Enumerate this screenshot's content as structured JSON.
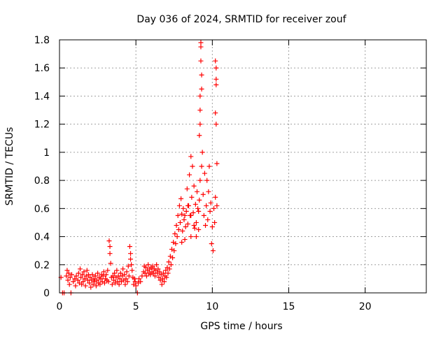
{
  "chart_data": {
    "type": "scatter",
    "title": "Day 036 of 2024, SRMTID for receiver zouf",
    "xlabel": "GPS time / hours",
    "ylabel": "SRMTID / TECUs",
    "xlim": [
      0,
      24
    ],
    "ylim": [
      0,
      1.8
    ],
    "xticks": [
      0,
      5,
      10,
      15,
      20
    ],
    "xtick_labels": [
      "0",
      "5",
      "10",
      "15",
      "20"
    ],
    "yticks": [
      0,
      0.2,
      0.4,
      0.6,
      0.8,
      1.0,
      1.2,
      1.4,
      1.6,
      1.8
    ],
    "ytick_labels": [
      "0",
      "0.2",
      "0.4",
      "0.6",
      "0.8",
      "1",
      "1.2",
      "1.4",
      "1.6",
      "1.8"
    ],
    "grid": true,
    "marker": "+",
    "color": "#ff0000",
    "series": [
      {
        "name": "SRMTID",
        "points": [
          [
            0.1,
            0.11
          ],
          [
            0.2,
            0.0
          ],
          [
            0.3,
            0.0
          ],
          [
            0.45,
            0.12
          ],
          [
            0.5,
            0.16
          ],
          [
            0.55,
            0.09
          ],
          [
            0.6,
            0.14
          ],
          [
            0.65,
            0.06
          ],
          [
            0.7,
            0.11
          ],
          [
            0.75,
            0.0
          ],
          [
            0.8,
            0.13
          ],
          [
            0.9,
            0.08
          ],
          [
            1.0,
            0.1
          ],
          [
            1.05,
            0.05
          ],
          [
            1.1,
            0.12
          ],
          [
            1.2,
            0.09
          ],
          [
            1.25,
            0.14
          ],
          [
            1.3,
            0.07
          ],
          [
            1.35,
            0.17
          ],
          [
            1.4,
            0.11
          ],
          [
            1.45,
            0.06
          ],
          [
            1.5,
            0.13
          ],
          [
            1.55,
            0.08
          ],
          [
            1.6,
            0.15
          ],
          [
            1.65,
            0.1
          ],
          [
            1.7,
            0.05
          ],
          [
            1.75,
            0.12
          ],
          [
            1.8,
            0.16
          ],
          [
            1.85,
            0.09
          ],
          [
            1.9,
            0.13
          ],
          [
            1.95,
            0.07
          ],
          [
            2.0,
            0.11
          ],
          [
            2.05,
            0.04
          ],
          [
            2.1,
            0.09
          ],
          [
            2.15,
            0.13
          ],
          [
            2.2,
            0.06
          ],
          [
            2.25,
            0.1
          ],
          [
            2.3,
            0.08
          ],
          [
            2.35,
            0.12
          ],
          [
            2.4,
            0.05
          ],
          [
            2.45,
            0.09
          ],
          [
            2.5,
            0.14
          ],
          [
            2.55,
            0.07
          ],
          [
            2.6,
            0.11
          ],
          [
            2.65,
            0.06
          ],
          [
            2.7,
            0.1
          ],
          [
            2.75,
            0.13
          ],
          [
            2.8,
            0.08
          ],
          [
            2.85,
            0.12
          ],
          [
            2.9,
            0.15
          ],
          [
            2.95,
            0.07
          ],
          [
            3.0,
            0.1
          ],
          [
            3.05,
            0.13
          ],
          [
            3.1,
            0.09
          ],
          [
            3.15,
            0.16
          ],
          [
            3.2,
            0.08
          ],
          [
            3.25,
            0.37
          ],
          [
            3.3,
            0.33
          ],
          [
            3.3,
            0.28
          ],
          [
            3.35,
            0.21
          ],
          [
            3.4,
            0.11
          ],
          [
            3.45,
            0.06
          ],
          [
            3.5,
            0.12
          ],
          [
            3.55,
            0.09
          ],
          [
            3.6,
            0.14
          ],
          [
            3.65,
            0.07
          ],
          [
            3.7,
            0.11
          ],
          [
            3.75,
            0.16
          ],
          [
            3.8,
            0.08
          ],
          [
            3.85,
            0.12
          ],
          [
            3.9,
            0.06
          ],
          [
            3.95,
            0.1
          ],
          [
            4.0,
            0.14
          ],
          [
            4.05,
            0.08
          ],
          [
            4.1,
            0.12
          ],
          [
            4.15,
            0.17
          ],
          [
            4.2,
            0.09
          ],
          [
            4.25,
            0.13
          ],
          [
            4.3,
            0.06
          ],
          [
            4.35,
            0.1
          ],
          [
            4.4,
            0.15
          ],
          [
            4.45,
            0.08
          ],
          [
            4.5,
            0.19
          ],
          [
            4.55,
            0.12
          ],
          [
            4.6,
            0.33
          ],
          [
            4.65,
            0.28
          ],
          [
            4.65,
            0.24
          ],
          [
            4.7,
            0.2
          ],
          [
            4.75,
            0.16
          ],
          [
            4.8,
            0.11
          ],
          [
            4.85,
            0.06
          ],
          [
            4.9,
            0.1
          ],
          [
            4.95,
            0.08
          ],
          [
            5.0,
            0.05
          ],
          [
            5.1,
            0.0
          ],
          [
            5.15,
            0.07
          ],
          [
            5.2,
            0.1
          ],
          [
            5.3,
            0.08
          ],
          [
            5.4,
            0.12
          ],
          [
            5.5,
            0.15
          ],
          [
            5.55,
            0.19
          ],
          [
            5.6,
            0.14
          ],
          [
            5.65,
            0.18
          ],
          [
            5.7,
            0.12
          ],
          [
            5.75,
            0.16
          ],
          [
            5.8,
            0.2
          ],
          [
            5.85,
            0.14
          ],
          [
            5.9,
            0.17
          ],
          [
            5.95,
            0.13
          ],
          [
            6.0,
            0.18
          ],
          [
            6.05,
            0.15
          ],
          [
            6.1,
            0.19
          ],
          [
            6.15,
            0.14
          ],
          [
            6.2,
            0.17
          ],
          [
            6.25,
            0.12
          ],
          [
            6.3,
            0.16
          ],
          [
            6.35,
            0.2
          ],
          [
            6.4,
            0.14
          ],
          [
            6.45,
            0.17
          ],
          [
            6.5,
            0.11
          ],
          [
            6.55,
            0.15
          ],
          [
            6.6,
            0.09
          ],
          [
            6.65,
            0.13
          ],
          [
            6.7,
            0.06
          ],
          [
            6.75,
            0.1
          ],
          [
            6.8,
            0.14
          ],
          [
            6.85,
            0.08
          ],
          [
            6.9,
            0.12
          ],
          [
            6.95,
            0.16
          ],
          [
            7.0,
            0.11
          ],
          [
            7.05,
            0.18
          ],
          [
            7.1,
            0.14
          ],
          [
            7.15,
            0.22
          ],
          [
            7.2,
            0.17
          ],
          [
            7.25,
            0.26
          ],
          [
            7.3,
            0.2
          ],
          [
            7.35,
            0.31
          ],
          [
            7.4,
            0.25
          ],
          [
            7.45,
            0.36
          ],
          [
            7.5,
            0.3
          ],
          [
            7.55,
            0.42
          ],
          [
            7.6,
            0.35
          ],
          [
            7.65,
            0.48
          ],
          [
            7.7,
            0.4
          ],
          [
            7.75,
            0.55
          ],
          [
            7.8,
            0.45
          ],
          [
            7.85,
            0.62
          ],
          [
            7.9,
            0.5
          ],
          [
            7.95,
            0.67
          ],
          [
            8.0,
            0.56
          ],
          [
            8.0,
            0.36
          ],
          [
            8.05,
            0.44
          ],
          [
            8.1,
            0.6
          ],
          [
            8.15,
            0.52
          ],
          [
            8.2,
            0.38
          ],
          [
            8.25,
            0.47
          ],
          [
            8.3,
            0.58
          ],
          [
            8.35,
            0.74
          ],
          [
            8.4,
            0.49
          ],
          [
            8.45,
            0.62
          ],
          [
            8.5,
            0.84
          ],
          [
            8.55,
            0.55
          ],
          [
            8.6,
            0.97
          ],
          [
            8.6,
            0.4
          ],
          [
            8.65,
            0.68
          ],
          [
            8.7,
            0.9
          ],
          [
            8.75,
            0.57
          ],
          [
            8.8,
            0.76
          ],
          [
            8.85,
            0.46
          ],
          [
            8.9,
            0.63
          ],
          [
            8.95,
            0.5
          ],
          [
            9.0,
            0.72
          ],
          [
            9.05,
            0.6
          ],
          [
            9.1,
            0.45
          ],
          [
            9.15,
            0.66
          ],
          [
            9.15,
            1.12
          ],
          [
            9.2,
            1.3
          ],
          [
            9.2,
            0.8
          ],
          [
            9.25,
            1.78
          ],
          [
            9.3,
            1.45
          ],
          [
            9.3,
            0.9
          ],
          [
            9.35,
            1.0
          ],
          [
            9.4,
            0.7
          ],
          [
            9.45,
            0.55
          ],
          [
            9.5,
            0.85
          ],
          [
            9.55,
            0.48
          ],
          [
            9.6,
            0.62
          ],
          [
            9.65,
            0.8
          ],
          [
            9.7,
            0.52
          ],
          [
            9.75,
            0.72
          ],
          [
            9.8,
            0.9
          ],
          [
            9.85,
            0.58
          ],
          [
            9.9,
            0.64
          ],
          [
            9.95,
            0.35
          ],
          [
            10.0,
            0.47
          ],
          [
            10.05,
            0.3
          ],
          [
            10.1,
            0.6
          ],
          [
            10.15,
            0.5
          ],
          [
            10.2,
            0.68
          ],
          [
            10.2,
            1.65
          ],
          [
            10.25,
            1.52
          ],
          [
            10.25,
            1.2
          ],
          [
            10.3,
            0.92
          ],
          [
            10.3,
            0.62
          ],
          [
            9.25,
            1.75
          ],
          [
            9.25,
            1.65
          ],
          [
            9.2,
            1.4
          ],
          [
            9.2,
            1.2
          ],
          [
            9.3,
            1.55
          ],
          [
            10.25,
            1.6
          ],
          [
            10.25,
            1.48
          ],
          [
            10.2,
            1.28
          ],
          [
            9.1,
            0.58
          ],
          [
            8.95,
            0.4
          ],
          [
            8.8,
            0.48
          ],
          [
            8.6,
            0.55
          ],
          [
            8.4,
            0.62
          ],
          [
            8.2,
            0.55
          ]
        ]
      }
    ]
  }
}
